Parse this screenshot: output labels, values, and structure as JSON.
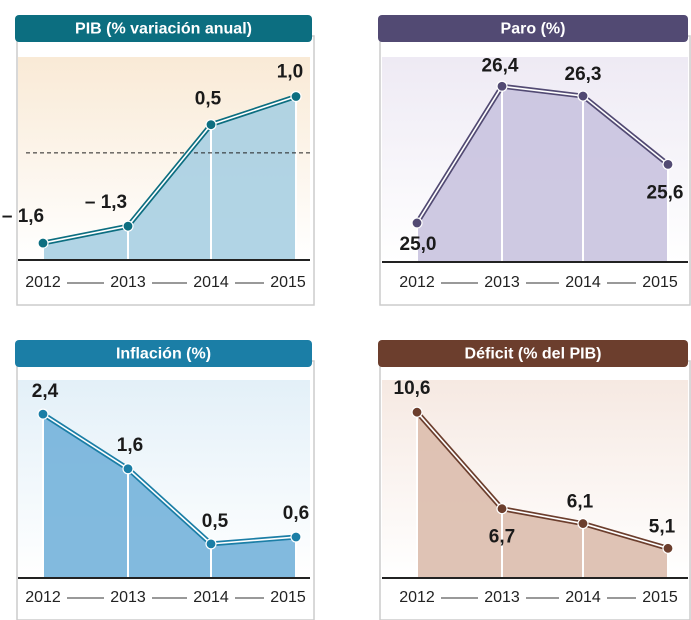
{
  "chart_data": [
    {
      "type": "line",
      "title": "PIB (% variación anual)",
      "categories": [
        "2012",
        "2013",
        "2014",
        "2015"
      ],
      "values": [
        -1.6,
        -1.3,
        0.5,
        1.0
      ],
      "value_labels": [
        "– 1,6",
        "– 1,3",
        "0,5",
        "1,0"
      ],
      "ylim": [
        -1.9,
        1.7
      ],
      "zero_line": true,
      "color": "#0c6e80",
      "fill": "#a8cfe2",
      "background": "#f9ead6"
    },
    {
      "type": "line",
      "title": "Paro (%)",
      "categories": [
        "2012",
        "2013",
        "2014",
        "2015"
      ],
      "values": [
        25.0,
        26.4,
        26.3,
        25.6
      ],
      "value_labels": [
        "25,0",
        "26,4",
        "26,3",
        "25,6"
      ],
      "ylim": [
        24.6,
        26.7
      ],
      "zero_line": false,
      "color": "#524a73",
      "fill": "#c9c3df",
      "background": "#eeeaf4"
    },
    {
      "type": "line",
      "title": "Inflación (%)",
      "categories": [
        "2012",
        "2013",
        "2014",
        "2015"
      ],
      "values": [
        2.4,
        1.6,
        0.5,
        0.6
      ],
      "value_labels": [
        "2,4",
        "1,6",
        "0,5",
        "0,6"
      ],
      "ylim": [
        0,
        2.9
      ],
      "zero_line": false,
      "color": "#1b7ea6",
      "fill": "#74b3da",
      "background": "#e3f0f8"
    },
    {
      "type": "line",
      "title": "Déficit (% del PIB)",
      "categories": [
        "2012",
        "2013",
        "2014",
        "2015"
      ],
      "values": [
        10.6,
        6.7,
        6.1,
        5.1
      ],
      "value_labels": [
        "10,6",
        "6,7",
        "6,1",
        "5,1"
      ],
      "ylim": [
        3.9,
        11.9
      ],
      "zero_line": false,
      "color": "#6c3e2d",
      "fill": "#dcbcad",
      "background": "#f6e9e2"
    }
  ]
}
